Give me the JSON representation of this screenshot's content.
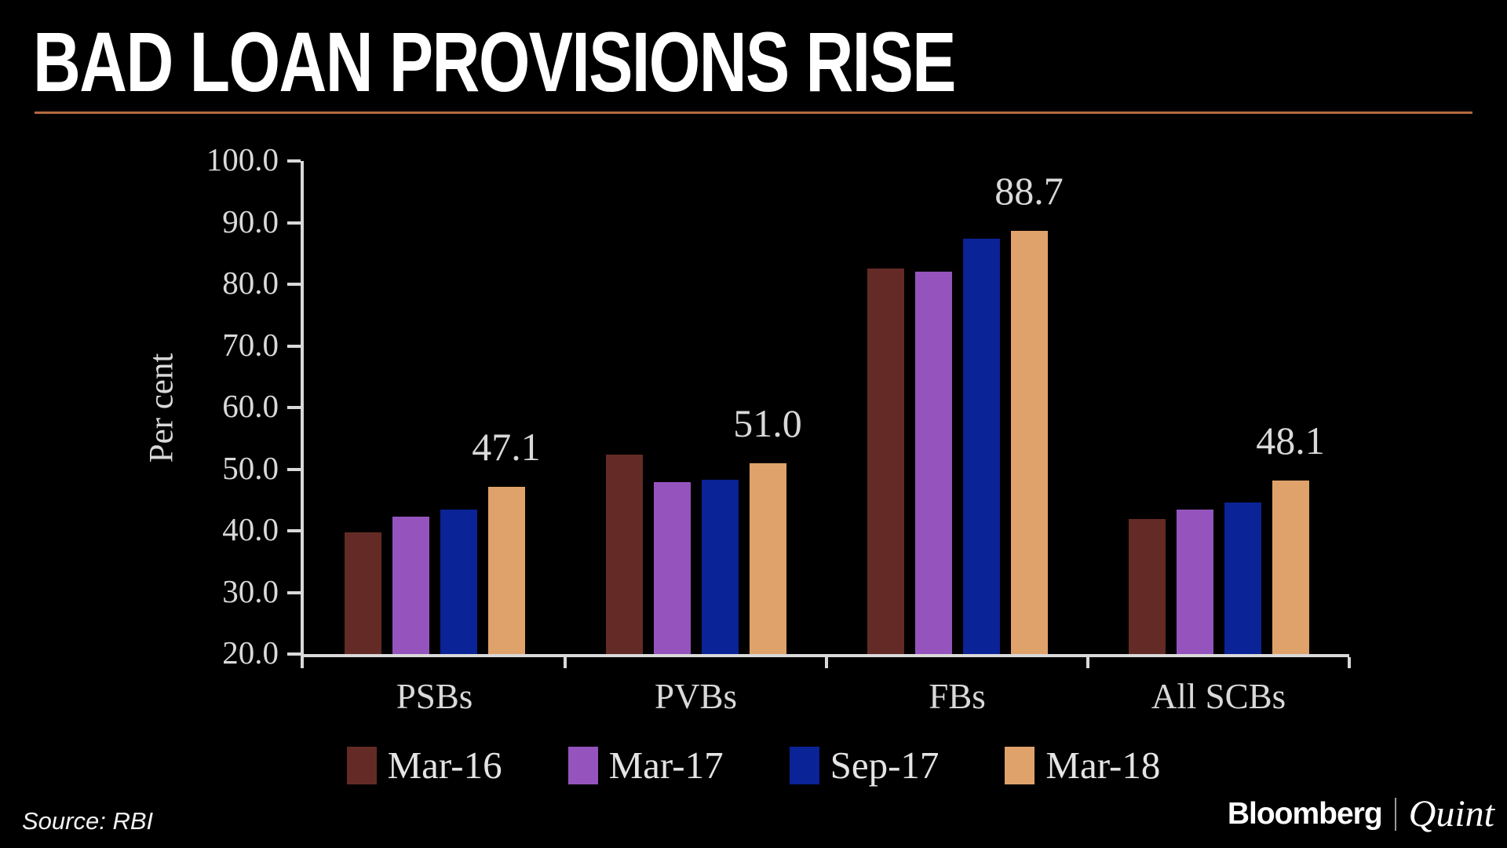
{
  "chart_data": {
    "type": "bar",
    "title": "BAD LOAN PROVISIONS RISE",
    "ylabel": "Per cent",
    "xlabel": "",
    "ylim": [
      20,
      100
    ],
    "ytick_labels": [
      "100.0",
      "90.0",
      "80.0",
      "70.0",
      "60.0",
      "50.0",
      "40.0",
      "30.0",
      "20.0"
    ],
    "grid": false,
    "legend_position": "bottom",
    "categories": [
      "PSBs",
      "PVBs",
      "FBs",
      "All SCBs"
    ],
    "series": [
      {
        "name": "Mar-16",
        "color": "#642b26",
        "values": [
          39.7,
          52.4,
          82.5,
          41.9
        ]
      },
      {
        "name": "Mar-17",
        "color": "#9554bd",
        "values": [
          42.3,
          47.9,
          82.1,
          43.4
        ]
      },
      {
        "name": "Sep-17",
        "color": "#0a2396",
        "values": [
          43.4,
          48.3,
          87.4,
          44.6
        ]
      },
      {
        "name": "Mar-18",
        "color": "#dfa26a",
        "values": [
          47.1,
          51.0,
          88.7,
          48.1
        ],
        "value_labels": [
          "47.1",
          "51.0",
          "88.7",
          "48.1"
        ]
      }
    ]
  },
  "colors": {
    "background": "#000000",
    "title_text": "#ffffff",
    "title_rule": "#b5693d",
    "axis": "#d9d9d9",
    "tick_text": "#d9d9d9"
  },
  "footer": {
    "source": "Source: RBI",
    "bloomberg": "Bloomberg",
    "quint": "Quint"
  }
}
